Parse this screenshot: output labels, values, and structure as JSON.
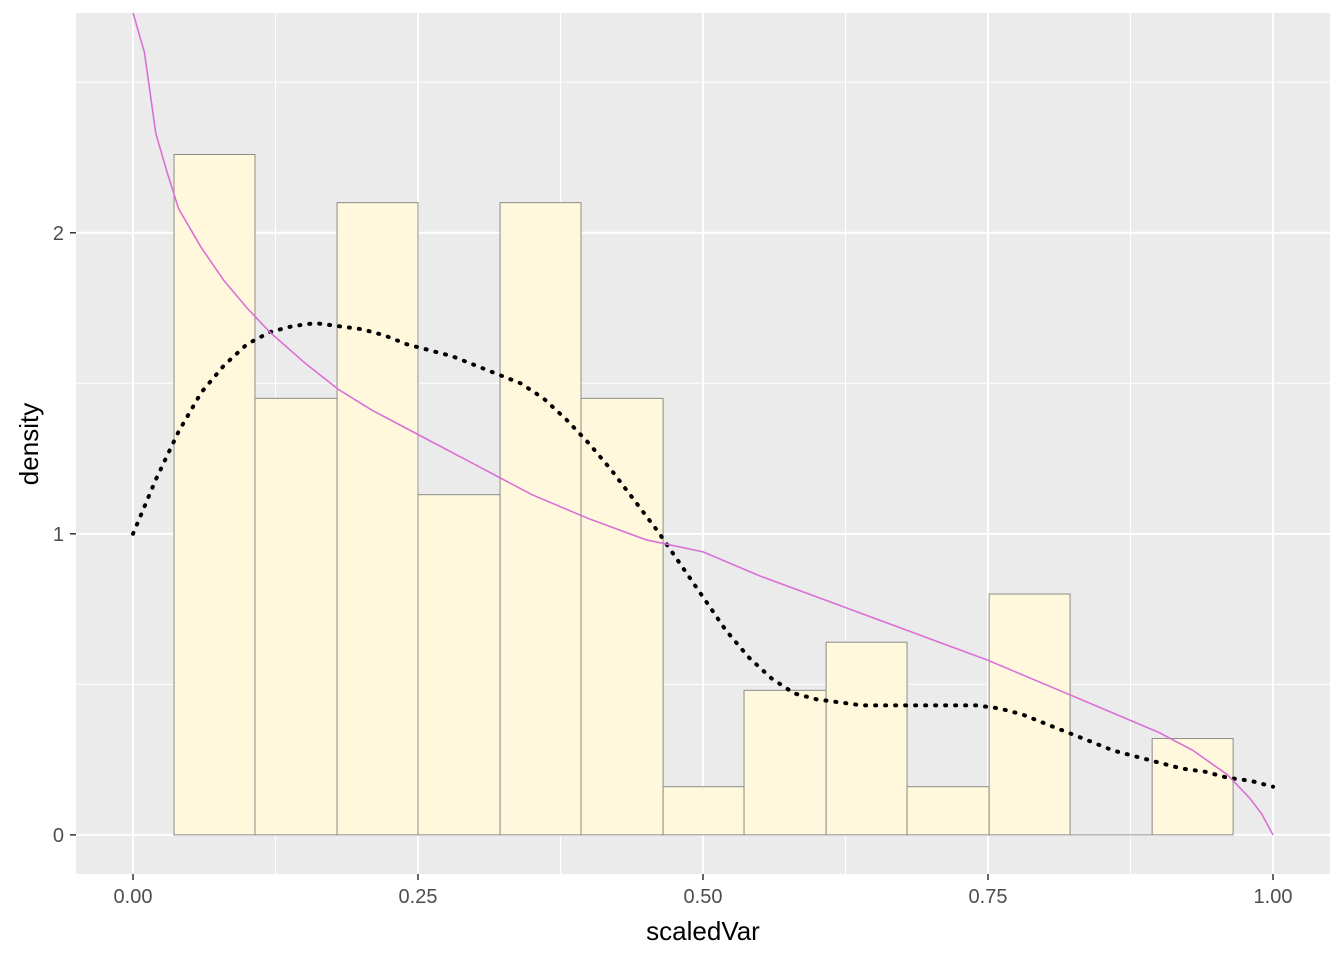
{
  "chart_data": {
    "type": "bar",
    "xlabel": "scaledVar",
    "ylabel": "density",
    "xlim": [
      -0.05,
      1.05
    ],
    "ylim": [
      -0.13,
      2.73
    ],
    "x_ticks": [
      0.0,
      0.25,
      0.5,
      0.75,
      1.0
    ],
    "x_tick_labels": [
      "0.00",
      "0.25",
      "0.50",
      "0.75",
      "1.00"
    ],
    "y_ticks": [
      0,
      1,
      2
    ],
    "y_tick_labels": [
      "0",
      "1",
      "2"
    ],
    "grid": true,
    "histogram": {
      "fill": "#fff8dc",
      "outline": "#8c8c8c",
      "bins": [
        {
          "x0": 0.036,
          "x1": 0.107,
          "density": 2.26
        },
        {
          "x0": 0.107,
          "x1": 0.179,
          "density": 1.45
        },
        {
          "x0": 0.179,
          "x1": 0.25,
          "density": 2.1
        },
        {
          "x0": 0.25,
          "x1": 0.322,
          "density": 1.13
        },
        {
          "x0": 0.322,
          "x1": 0.393,
          "density": 2.1
        },
        {
          "x0": 0.393,
          "x1": 0.465,
          "density": 1.45
        },
        {
          "x0": 0.465,
          "x1": 0.536,
          "density": 0.16
        },
        {
          "x0": 0.536,
          "x1": 0.608,
          "density": 0.48
        },
        {
          "x0": 0.608,
          "x1": 0.679,
          "density": 0.64
        },
        {
          "x0": 0.679,
          "x1": 0.751,
          "density": 0.16
        },
        {
          "x0": 0.751,
          "x1": 0.822,
          "density": 0.8
        },
        {
          "x0": 0.822,
          "x1": 0.894,
          "density": 0.0
        },
        {
          "x0": 0.894,
          "x1": 0.965,
          "density": 0.32
        }
      ]
    },
    "series": [
      {
        "style": "dotted",
        "color": "#000000",
        "x": [
          0.0,
          0.02,
          0.04,
          0.06,
          0.08,
          0.1,
          0.12,
          0.14,
          0.16,
          0.18,
          0.2,
          0.22,
          0.24,
          0.26,
          0.28,
          0.3,
          0.32,
          0.34,
          0.36,
          0.38,
          0.4,
          0.42,
          0.44,
          0.46,
          0.48,
          0.5,
          0.52,
          0.54,
          0.56,
          0.58,
          0.6,
          0.62,
          0.64,
          0.66,
          0.68,
          0.7,
          0.72,
          0.74,
          0.76,
          0.78,
          0.8,
          0.82,
          0.84,
          0.86,
          0.88,
          0.9,
          0.92,
          0.94,
          0.96,
          0.98,
          1.0
        ],
        "y": [
          1.0,
          1.18,
          1.34,
          1.47,
          1.56,
          1.63,
          1.67,
          1.69,
          1.7,
          1.69,
          1.68,
          1.66,
          1.63,
          1.61,
          1.59,
          1.56,
          1.53,
          1.5,
          1.45,
          1.38,
          1.3,
          1.21,
          1.11,
          1.01,
          0.9,
          0.79,
          0.68,
          0.59,
          0.52,
          0.47,
          0.45,
          0.44,
          0.43,
          0.43,
          0.43,
          0.43,
          0.43,
          0.43,
          0.42,
          0.4,
          0.37,
          0.34,
          0.31,
          0.28,
          0.26,
          0.24,
          0.22,
          0.21,
          0.19,
          0.18,
          0.16
        ]
      },
      {
        "style": "solid",
        "color": "#da70d6",
        "x": [
          0.0,
          0.01,
          0.02,
          0.03,
          0.04,
          0.06,
          0.08,
          0.1,
          0.12,
          0.15,
          0.18,
          0.21,
          0.25,
          0.3,
          0.35,
          0.4,
          0.45,
          0.5,
          0.55,
          0.6,
          0.65,
          0.7,
          0.75,
          0.8,
          0.85,
          0.9,
          0.93,
          0.96,
          0.98,
          0.99,
          1.0
        ],
        "y": [
          2.73,
          2.6,
          2.33,
          2.2,
          2.08,
          1.95,
          1.84,
          1.75,
          1.67,
          1.57,
          1.48,
          1.41,
          1.33,
          1.23,
          1.13,
          1.05,
          0.98,
          0.94,
          0.86,
          0.79,
          0.72,
          0.65,
          0.58,
          0.5,
          0.42,
          0.34,
          0.28,
          0.2,
          0.12,
          0.07,
          0.0
        ]
      }
    ]
  }
}
